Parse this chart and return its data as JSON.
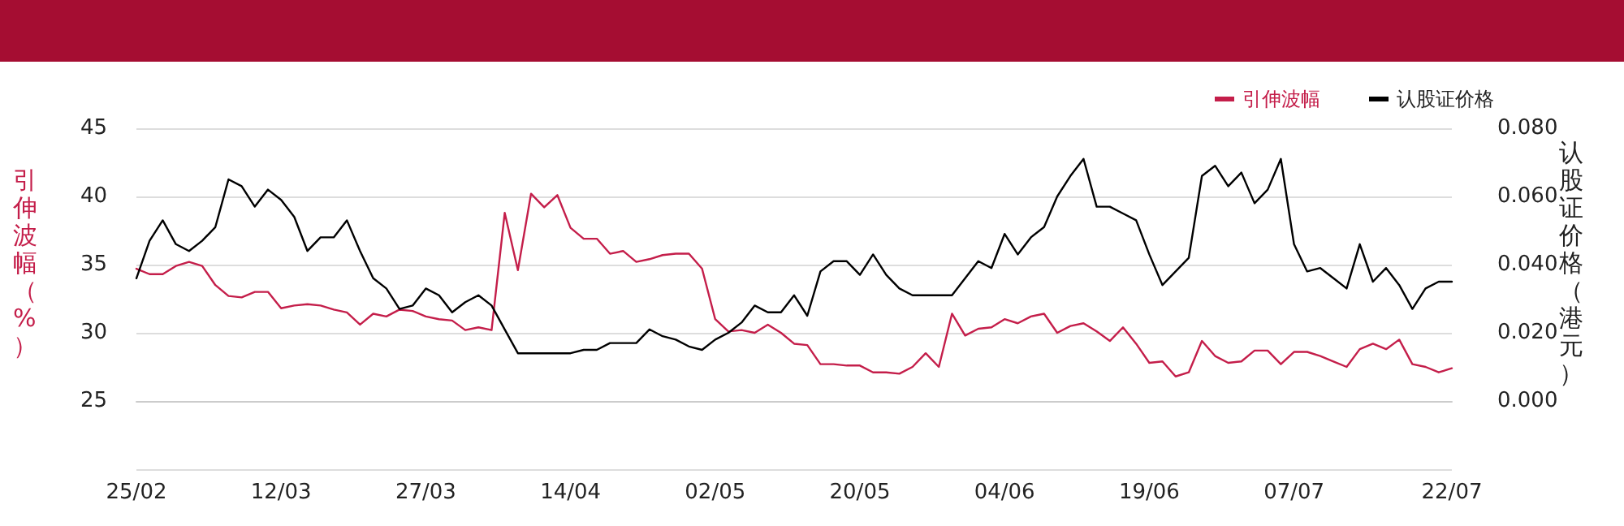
{
  "chart_data": {
    "type": "line",
    "ylabel": "引伸波幅（%）",
    "y2label": "认股证价格（港元）",
    "categories": [
      "25/02",
      null,
      null,
      null,
      null,
      null,
      null,
      null,
      null,
      null,
      null,
      "12/03",
      null,
      null,
      null,
      null,
      null,
      null,
      null,
      null,
      null,
      null,
      "27/03",
      null,
      null,
      null,
      null,
      null,
      null,
      null,
      null,
      null,
      null,
      "14/04",
      null,
      null,
      null,
      null,
      null,
      null,
      null,
      null,
      null,
      null,
      "02/05",
      null,
      null,
      null,
      null,
      null,
      null,
      null,
      null,
      null,
      null,
      "20/05",
      null,
      null,
      null,
      null,
      null,
      null,
      null,
      null,
      null,
      null,
      "04/06",
      null,
      null,
      null,
      null,
      null,
      null,
      null,
      null,
      null,
      null,
      "19/06",
      null,
      null,
      null,
      null,
      null,
      null,
      null,
      null,
      null,
      null,
      "07/07",
      null,
      null,
      null,
      null,
      null,
      null,
      null,
      null,
      null,
      null,
      null,
      "22/07"
    ],
    "series": [
      {
        "name": "引伸波幅",
        "color": "#c41e4a",
        "values": [
          34.7,
          34.3,
          34.3,
          34.9,
          35.2,
          34.9,
          33.5,
          32.7,
          32.6,
          33.0,
          33.0,
          31.8,
          32.0,
          32.1,
          32.0,
          31.7,
          31.5,
          30.6,
          31.4,
          31.2,
          31.7,
          31.6,
          31.2,
          31.0,
          30.9,
          30.2,
          30.4,
          30.2,
          38.8,
          34.6,
          40.2,
          39.2,
          40.1,
          37.7,
          36.9,
          36.9,
          35.8,
          36.0,
          35.2,
          35.4,
          35.7,
          35.8,
          35.8,
          34.7,
          31.0,
          30.1,
          30.2,
          30.0,
          30.6,
          30.0,
          29.2,
          29.1,
          27.7,
          27.7,
          27.6,
          27.6,
          27.1,
          27.1,
          27.0,
          27.5,
          28.5,
          27.5,
          31.4,
          29.8,
          30.3,
          30.4,
          31.0,
          30.7,
          31.2,
          31.4,
          30.0,
          30.5,
          30.7,
          30.1,
          29.4,
          30.4,
          29.2,
          27.8,
          27.9,
          26.8,
          27.1,
          29.4,
          28.3,
          27.8,
          27.9,
          28.7,
          28.7,
          27.7,
          28.6,
          28.6,
          28.3,
          27.9,
          27.5,
          28.8,
          29.2,
          28.8,
          29.5,
          27.7,
          27.5,
          27.1,
          27.4
        ]
      },
      {
        "name": "认股证价格",
        "color": "#000000",
        "axis": "y2",
        "values": [
          0.036,
          0.047,
          0.053,
          0.046,
          0.044,
          0.047,
          0.051,
          0.065,
          0.063,
          0.057,
          0.062,
          0.059,
          0.054,
          0.044,
          0.048,
          0.048,
          0.053,
          0.044,
          0.036,
          0.033,
          0.027,
          0.028,
          0.033,
          0.031,
          0.026,
          0.029,
          0.031,
          0.028,
          0.021,
          0.014,
          0.014,
          0.014,
          0.014,
          0.014,
          0.015,
          0.015,
          0.017,
          0.017,
          0.017,
          0.021,
          0.019,
          0.018,
          0.016,
          0.015,
          0.018,
          0.02,
          0.023,
          0.028,
          0.026,
          0.026,
          0.031,
          0.025,
          0.038,
          0.041,
          0.041,
          0.037,
          0.043,
          0.037,
          0.033,
          0.031,
          0.031,
          0.031,
          0.031,
          0.036,
          0.041,
          0.039,
          0.049,
          0.043,
          0.048,
          0.051,
          0.06,
          0.066,
          0.071,
          0.057,
          0.057,
          0.055,
          0.053,
          0.043,
          0.034,
          0.038,
          0.042,
          0.066,
          0.069,
          0.063,
          0.067,
          0.058,
          0.062,
          0.071,
          0.046,
          0.038,
          0.039,
          0.036,
          0.033,
          0.046,
          0.035,
          0.039,
          0.034,
          0.027,
          0.033,
          0.035,
          0.035
        ]
      }
    ],
    "ylim": [
      20,
      45
    ],
    "yticks": [
      {
        "value": 20,
        "label": null
      },
      25,
      30,
      35,
      40,
      45
    ],
    "y2lim": [
      -0.02,
      0.08
    ],
    "y2ticks": [
      {
        "value": -0.02,
        "label": null
      },
      {
        "value": 0,
        "label": "0.000"
      },
      {
        "value": 0.02,
        "label": "0.020"
      },
      {
        "value": 0.04,
        "label": "0.040"
      },
      {
        "value": 0.06,
        "label": "0.060"
      },
      {
        "value": 0.08,
        "label": "0.080"
      }
    ],
    "grid": "y",
    "legend": "top right",
    "marker": "none",
    "line_style": "solid"
  }
}
